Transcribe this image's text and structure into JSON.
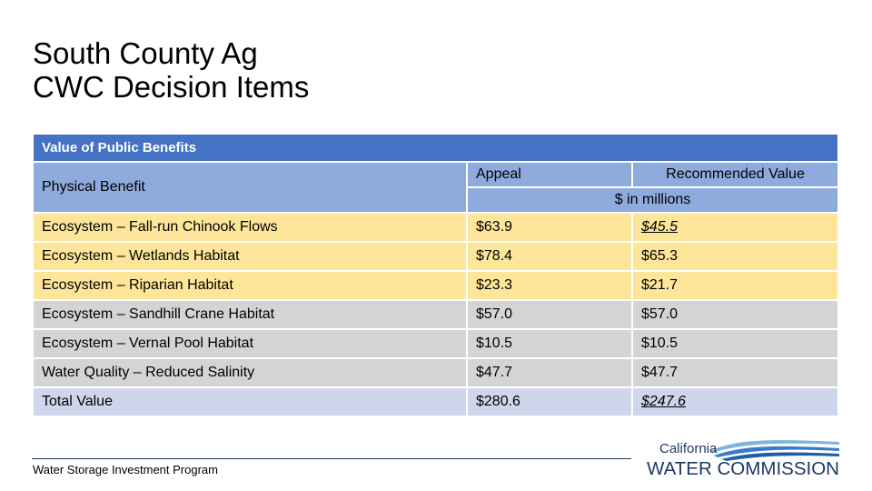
{
  "title": {
    "line1": "South County Ag",
    "line2": "CWC Decision Items"
  },
  "table": {
    "band_title": "Value of Public Benefits",
    "col_label": "Physical Benefit",
    "col_appeal": "Appeal",
    "col_recommended": "Recommended Value",
    "units": "$ in millions",
    "rows": [
      {
        "label": "Ecosystem – Fall-run Chinook Flows",
        "appeal": "$63.9",
        "recommended": "$45.5"
      },
      {
        "label": "Ecosystem – Wetlands Habitat",
        "appeal": "$78.4",
        "recommended": "$65.3"
      },
      {
        "label": "Ecosystem – Riparian Habitat",
        "appeal": "$23.3",
        "recommended": "$21.7"
      },
      {
        "label": "Ecosystem – Sandhill Crane Habitat",
        "appeal": "$57.0",
        "recommended": "$57.0"
      },
      {
        "label": "Ecosystem – Vernal Pool Habitat",
        "appeal": "$10.5",
        "recommended": "$10.5"
      },
      {
        "label": "Water Quality – Reduced Salinity",
        "appeal": "$47.7",
        "recommended": "$47.7"
      }
    ],
    "total": {
      "label": "Total Value",
      "appeal": "$280.6",
      "recommended": "$247.6"
    }
  },
  "footer": {
    "program": "Water Storage Investment Program"
  },
  "logo": {
    "line1": "California",
    "line2": "WATER COMMISSION",
    "icon": "water-waves-icon"
  },
  "colors": {
    "header": "#4472c4",
    "subheader": "#8faadc",
    "highlight": "#fde69a",
    "neutral": "#d4d4d4",
    "total": "#cfd5ea",
    "logo_blue": "#1f5fa8"
  }
}
